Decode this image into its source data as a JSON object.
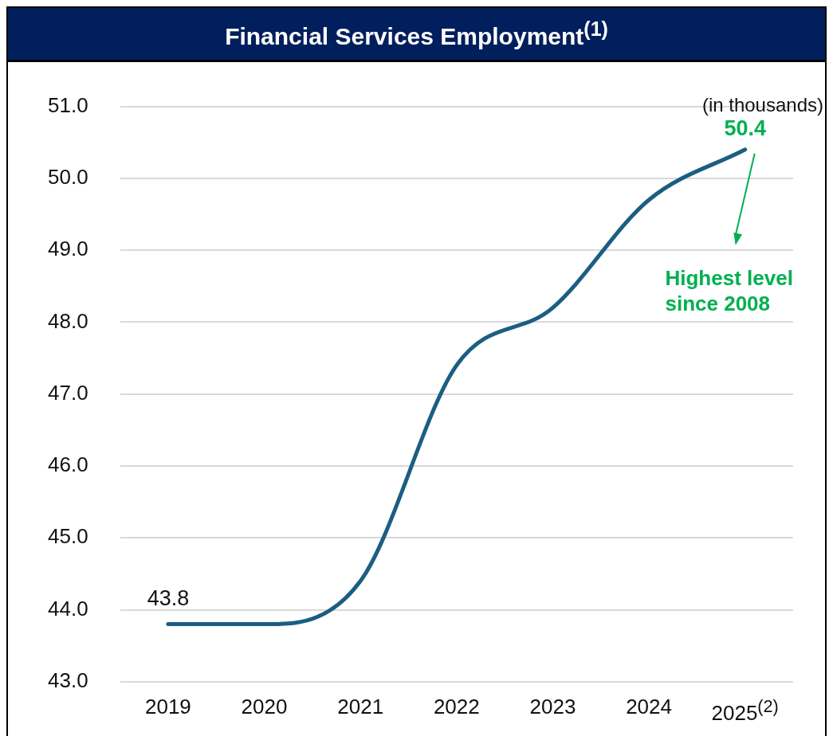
{
  "chart_data": {
    "type": "line",
    "title": "Financial Services Employment$^{(1)}$",
    "categories": [
      "2019",
      "2020",
      "2021",
      "2022",
      "2023",
      "2024",
      "2025$^{(2)}$"
    ],
    "series": [
      {
        "color": "#1b5e82",
        "values": [
          43.8,
          43.8,
          44.4,
          47.4,
          48.2,
          49.7,
          50.4
        ],
        "value_labels": [
          "43.8",
          null,
          null,
          null,
          null,
          null,
          "50.4"
        ]
      }
    ],
    "ylim": [
      43.0,
      51.0
    ],
    "yticks": [
      {
        "value": 43,
        "label": "43.0"
      },
      {
        "value": 44,
        "label": "44.0"
      },
      {
        "value": 45,
        "label": "45.0"
      },
      {
        "value": 46,
        "label": "46.0"
      },
      {
        "value": 47,
        "label": "47.0"
      },
      {
        "value": 48,
        "label": "48.0"
      },
      {
        "value": 49,
        "label": "49.0"
      },
      {
        "value": 50,
        "label": "50.0"
      },
      {
        "value": 51,
        "label": "51.0"
      }
    ],
    "grid": "y",
    "legend": false,
    "marker": "none",
    "line_style": "solid",
    "annotations": [
      "(in thousands)",
      "Highest level since 2008"
    ]
  }
}
